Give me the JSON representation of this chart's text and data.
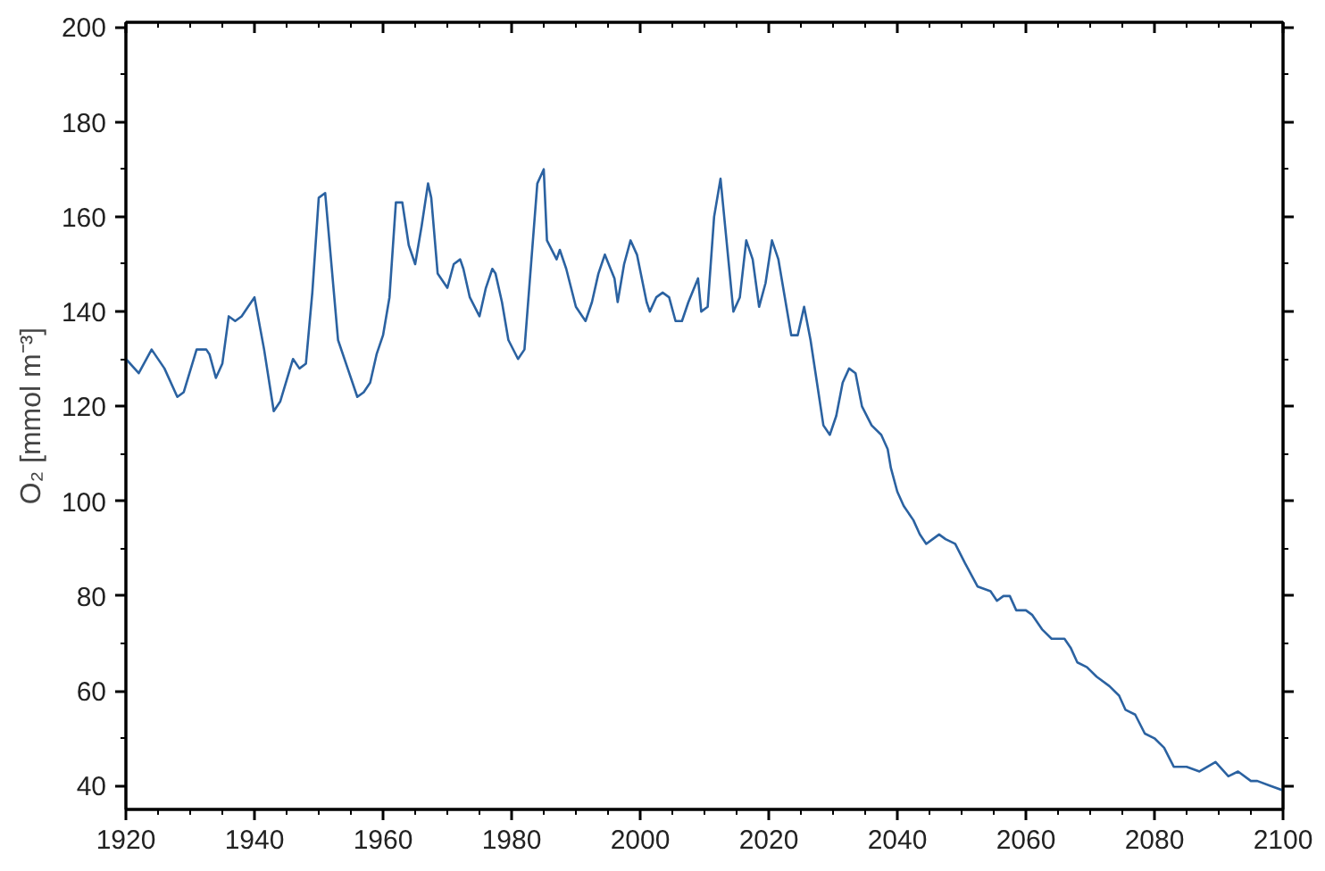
{
  "chart_data": {
    "type": "line",
    "ylabel": "O₂ [mmol m⁻³]",
    "x": [
      1920,
      1922,
      1924,
      1926,
      1928,
      1929,
      1931,
      1932.5,
      1933,
      1934,
      1935,
      1936,
      1937,
      1938,
      1939,
      1940,
      1941.5,
      1943,
      1944,
      1946,
      1947,
      1948,
      1949,
      1950,
      1951,
      1953,
      1954.5,
      1956,
      1957,
      1958,
      1959,
      1960,
      1961,
      1962,
      1963,
      1964,
      1965,
      1966,
      1967,
      1967.5,
      1968.5,
      1970,
      1971,
      1972,
      1972.5,
      1973.5,
      1975,
      1976,
      1977,
      1977.5,
      1978.5,
      1979.5,
      1981,
      1982,
      1984,
      1985,
      1985.5,
      1987,
      1987.5,
      1988.5,
      1990,
      1991,
      1991.5,
      1992.5,
      1993.5,
      1994.5,
      1996,
      1996.5,
      1997.5,
      1998.5,
      1999.5,
      2001,
      2001.5,
      2002.5,
      2003.5,
      2004.5,
      2005.5,
      2006.5,
      2007.5,
      2009,
      2009.5,
      2010.5,
      2011.5,
      2012.5,
      2013.5,
      2014.5,
      2015.5,
      2016.5,
      2017.5,
      2018.5,
      2019.5,
      2020.5,
      2021.5,
      2022.5,
      2023.5,
      2024.5,
      2025.5,
      2026.5,
      2027.5,
      2028.5,
      2029.5,
      2030.5,
      2031.5,
      2032.5,
      2033.5,
      2034.5,
      2036,
      2037.5,
      2038.5,
      2039,
      2040,
      2041,
      2042.5,
      2043.5,
      2044.5,
      2045.5,
      2046.5,
      2047.5,
      2049,
      2050.5,
      2052.5,
      2054.5,
      2055.5,
      2056.5,
      2057.5,
      2058.5,
      2060,
      2061,
      2062.5,
      2064,
      2065,
      2066,
      2067,
      2068,
      2069.5,
      2071,
      2073,
      2074.5,
      2075.5,
      2077,
      2078.5,
      2080,
      2081.5,
      2083,
      2085,
      2087,
      2089.5,
      2091.5,
      2093,
      2095,
      2096,
      2098,
      2100
    ],
    "series": [
      {
        "color": "#2b62a1",
        "values": [
          130,
          127,
          132,
          128,
          122,
          123,
          132,
          132,
          131,
          126,
          129,
          139,
          138,
          139,
          141,
          143,
          132,
          119,
          121,
          130,
          128,
          129,
          144,
          164,
          165,
          134,
          128,
          122,
          123,
          125,
          131,
          135,
          143,
          163,
          163,
          154,
          150,
          158,
          167,
          164,
          148,
          145,
          150,
          151,
          149,
          143,
          139,
          145,
          149,
          148,
          142,
          134,
          130,
          132,
          167,
          170,
          155,
          151,
          153,
          149,
          141,
          139,
          138,
          142,
          148,
          152,
          147,
          142,
          150,
          155,
          152,
          142,
          140,
          143,
          144,
          143,
          138,
          138,
          142,
          147,
          140,
          141,
          160,
          168,
          154,
          140,
          143,
          155,
          151,
          141,
          146,
          155,
          151,
          143,
          135,
          135,
          141,
          134,
          125,
          116,
          114,
          118,
          125,
          128,
          127,
          120,
          116,
          114,
          111,
          107,
          102,
          99,
          96,
          93,
          91,
          92,
          93,
          92,
          91,
          87,
          82,
          81,
          79,
          80,
          80,
          77,
          77,
          76,
          73,
          71,
          71,
          71,
          69,
          66,
          65,
          63,
          61,
          59,
          56,
          55,
          51,
          50,
          48,
          44,
          44,
          43,
          45,
          42,
          43,
          41,
          41,
          40,
          39
        ]
      }
    ],
    "xlim": [
      1920,
      2100
    ],
    "ylim": [
      35,
      201
    ],
    "xticks": [
      1920,
      1940,
      1960,
      1980,
      2000,
      2020,
      2040,
      2060,
      2080,
      2100
    ],
    "yticks": [
      40,
      60,
      80,
      100,
      120,
      140,
      160,
      180,
      200
    ],
    "grid": false
  }
}
